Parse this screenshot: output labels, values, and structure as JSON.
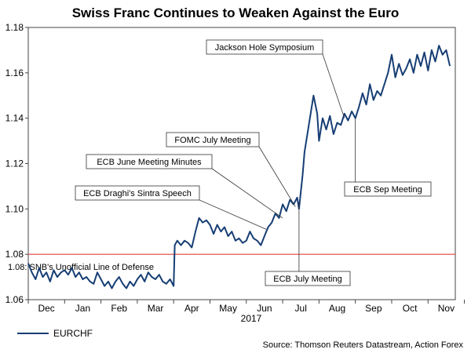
{
  "chart_data": {
    "type": "line",
    "title": "Swiss Franc Continues to Weaken Against the Euro",
    "xlabel": "2017",
    "ylabel": "",
    "ylim": [
      1.06,
      1.18
    ],
    "yticks": [
      "1.06",
      "1.08",
      "1.10",
      "1.12",
      "1.14",
      "1.16",
      "1.18"
    ],
    "x_categories": [
      "Dec",
      "Jan",
      "Feb",
      "Mar",
      "Apr",
      "May",
      "Jun",
      "Jul",
      "Aug",
      "Sep",
      "Oct",
      "Nov"
    ],
    "series": [
      {
        "name": "EURCHF",
        "color": "#163e74",
        "points": [
          [
            0.0,
            1.076
          ],
          [
            0.1,
            1.072
          ],
          [
            0.2,
            1.069
          ],
          [
            0.3,
            1.074
          ],
          [
            0.4,
            1.07
          ],
          [
            0.5,
            1.072
          ],
          [
            0.6,
            1.068
          ],
          [
            0.7,
            1.073
          ],
          [
            0.8,
            1.07
          ],
          [
            0.9,
            1.072
          ],
          [
            1.0,
            1.073
          ],
          [
            1.1,
            1.071
          ],
          [
            1.2,
            1.074
          ],
          [
            1.3,
            1.07
          ],
          [
            1.4,
            1.072
          ],
          [
            1.5,
            1.069
          ],
          [
            1.6,
            1.07
          ],
          [
            1.7,
            1.068
          ],
          [
            1.8,
            1.067
          ],
          [
            1.9,
            1.072
          ],
          [
            2.0,
            1.069
          ],
          [
            2.1,
            1.066
          ],
          [
            2.2,
            1.068
          ],
          [
            2.3,
            1.065
          ],
          [
            2.4,
            1.068
          ],
          [
            2.5,
            1.07
          ],
          [
            2.6,
            1.067
          ],
          [
            2.7,
            1.065
          ],
          [
            2.8,
            1.068
          ],
          [
            2.9,
            1.066
          ],
          [
            3.0,
            1.069
          ],
          [
            3.1,
            1.071
          ],
          [
            3.2,
            1.068
          ],
          [
            3.3,
            1.072
          ],
          [
            3.4,
            1.07
          ],
          [
            3.5,
            1.069
          ],
          [
            3.6,
            1.071
          ],
          [
            3.7,
            1.068
          ],
          [
            3.8,
            1.067
          ],
          [
            3.9,
            1.069
          ],
          [
            4.0,
            1.066
          ],
          [
            4.03,
            1.084
          ],
          [
            4.1,
            1.086
          ],
          [
            4.2,
            1.084
          ],
          [
            4.3,
            1.086
          ],
          [
            4.4,
            1.085
          ],
          [
            4.5,
            1.083
          ],
          [
            4.6,
            1.09
          ],
          [
            4.7,
            1.096
          ],
          [
            4.8,
            1.094
          ],
          [
            4.9,
            1.095
          ],
          [
            5.0,
            1.093
          ],
          [
            5.1,
            1.089
          ],
          [
            5.2,
            1.093
          ],
          [
            5.3,
            1.09
          ],
          [
            5.4,
            1.092
          ],
          [
            5.5,
            1.088
          ],
          [
            5.6,
            1.09
          ],
          [
            5.7,
            1.086
          ],
          [
            5.8,
            1.087
          ],
          [
            5.9,
            1.085
          ],
          [
            6.0,
            1.086
          ],
          [
            6.1,
            1.09
          ],
          [
            6.2,
            1.087
          ],
          [
            6.3,
            1.086
          ],
          [
            6.4,
            1.084
          ],
          [
            6.5,
            1.088
          ],
          [
            6.6,
            1.092
          ],
          [
            6.7,
            1.094
          ],
          [
            6.8,
            1.098
          ],
          [
            6.9,
            1.096
          ],
          [
            7.0,
            1.102
          ],
          [
            7.1,
            1.099
          ],
          [
            7.2,
            1.104
          ],
          [
            7.3,
            1.102
          ],
          [
            7.4,
            1.105
          ],
          [
            7.45,
            1.1
          ],
          [
            7.55,
            1.115
          ],
          [
            7.6,
            1.125
          ],
          [
            7.7,
            1.135
          ],
          [
            7.8,
            1.145
          ],
          [
            7.85,
            1.15
          ],
          [
            7.95,
            1.142
          ],
          [
            8.0,
            1.13
          ],
          [
            8.1,
            1.14
          ],
          [
            8.2,
            1.135
          ],
          [
            8.3,
            1.141
          ],
          [
            8.4,
            1.133
          ],
          [
            8.5,
            1.138
          ],
          [
            8.6,
            1.137
          ],
          [
            8.7,
            1.142
          ],
          [
            8.8,
            1.139
          ],
          [
            8.9,
            1.143
          ],
          [
            9.0,
            1.14
          ],
          [
            9.1,
            1.145
          ],
          [
            9.2,
            1.151
          ],
          [
            9.3,
            1.146
          ],
          [
            9.4,
            1.155
          ],
          [
            9.5,
            1.148
          ],
          [
            9.6,
            1.152
          ],
          [
            9.7,
            1.15
          ],
          [
            9.8,
            1.155
          ],
          [
            9.9,
            1.16
          ],
          [
            10.0,
            1.168
          ],
          [
            10.1,
            1.158
          ],
          [
            10.2,
            1.164
          ],
          [
            10.3,
            1.159
          ],
          [
            10.4,
            1.162
          ],
          [
            10.5,
            1.166
          ],
          [
            10.6,
            1.16
          ],
          [
            10.7,
            1.168
          ],
          [
            10.8,
            1.163
          ],
          [
            10.9,
            1.169
          ],
          [
            11.0,
            1.161
          ],
          [
            11.1,
            1.17
          ],
          [
            11.2,
            1.165
          ],
          [
            11.3,
            1.172
          ],
          [
            11.4,
            1.168
          ],
          [
            11.5,
            1.17
          ],
          [
            11.6,
            1.163
          ]
        ]
      }
    ],
    "reference_line": {
      "value": 1.08,
      "label": "1.08: SNB's Unofficial Line of Defense",
      "color": "#e0413d"
    },
    "annotations": [
      {
        "label": "Jackson Hole Symposium",
        "target": [
          8.7,
          1.14
        ]
      },
      {
        "label": "FOMC July Meeting",
        "target": [
          7.35,
          1.101
        ]
      },
      {
        "label": "ECB June Meeting Minutes",
        "target": [
          7.0,
          1.096
        ]
      },
      {
        "label": "ECB Draghi's Sintra Speech",
        "target": [
          6.55,
          1.091
        ]
      },
      {
        "label": "ECB Sep Meeting",
        "target": [
          9.0,
          1.14
        ]
      },
      {
        "label": "ECB July Meeting",
        "target": [
          7.45,
          1.103
        ]
      }
    ],
    "legend": {
      "label": "EURCHF",
      "position": "bottom-left"
    },
    "source": "Source: Thomson Reuters Datastream, Action Forex"
  }
}
